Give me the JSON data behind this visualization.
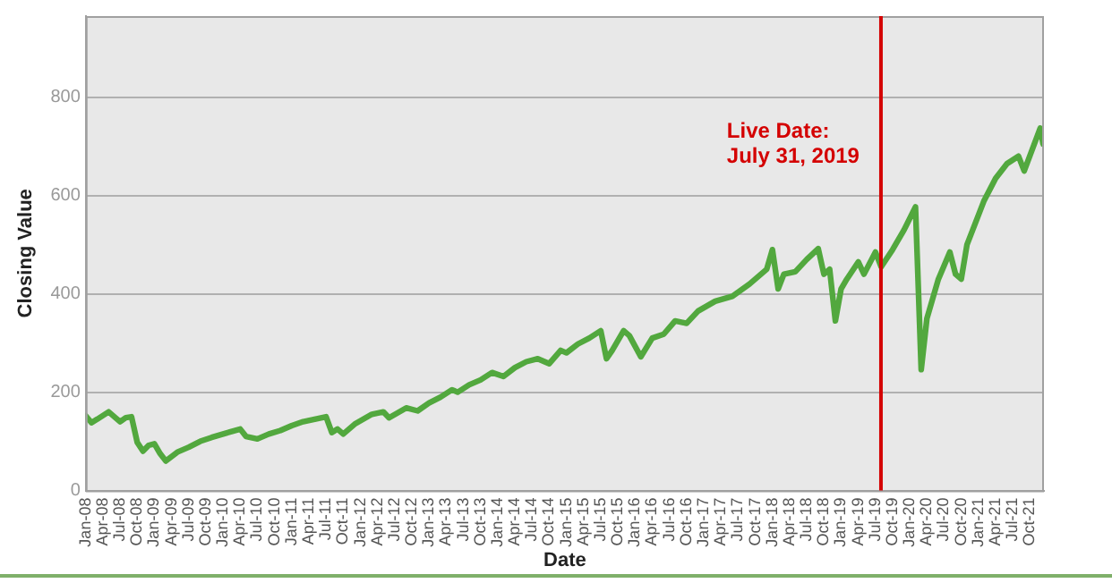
{
  "chart_data": {
    "type": "line",
    "xlabel": "Date",
    "ylabel": "Closing Value",
    "xlim": [
      "2008-01-01",
      "2021-12-15"
    ],
    "ylim": [
      0,
      965
    ],
    "yticks": [
      0,
      200,
      400,
      600,
      800
    ],
    "xticks": [
      {
        "value": "2008-01",
        "label": "Jan-08"
      },
      {
        "value": "2008-04",
        "label": "Apr-08"
      },
      {
        "value": "2008-07",
        "label": "Jul-08"
      },
      {
        "value": "2008-10",
        "label": "Oct-08"
      },
      {
        "value": "2009-01",
        "label": "Jan-09"
      },
      {
        "value": "2009-04",
        "label": "Apr-09"
      },
      {
        "value": "2009-07",
        "label": "Jul-09"
      },
      {
        "value": "2009-10",
        "label": "Oct-09"
      },
      {
        "value": "2010-01",
        "label": "Jan-10"
      },
      {
        "value": "2010-04",
        "label": "Apr-10"
      },
      {
        "value": "2010-07",
        "label": "Jul-10"
      },
      {
        "value": "2010-10",
        "label": "Oct-10"
      },
      {
        "value": "2011-01",
        "label": "Jan-11"
      },
      {
        "value": "2011-04",
        "label": "Apr-11"
      },
      {
        "value": "2011-07",
        "label": "Jul-11"
      },
      {
        "value": "2011-10",
        "label": "Oct-11"
      },
      {
        "value": "2012-01",
        "label": "Jan-12"
      },
      {
        "value": "2012-04",
        "label": "Apr-12"
      },
      {
        "value": "2012-07",
        "label": "Jul-12"
      },
      {
        "value": "2012-10",
        "label": "Oct-12"
      },
      {
        "value": "2013-01",
        "label": "Jan-13"
      },
      {
        "value": "2013-04",
        "label": "Apr-13"
      },
      {
        "value": "2013-07",
        "label": "Jul-13"
      },
      {
        "value": "2013-10",
        "label": "Oct-13"
      },
      {
        "value": "2014-01",
        "label": "Jan-14"
      },
      {
        "value": "2014-04",
        "label": "Apr-14"
      },
      {
        "value": "2014-07",
        "label": "Jul-14"
      },
      {
        "value": "2014-10",
        "label": "Oct-14"
      },
      {
        "value": "2015-01",
        "label": "Jan-15"
      },
      {
        "value": "2015-04",
        "label": "Apr-15"
      },
      {
        "value": "2015-07",
        "label": "Jul-15"
      },
      {
        "value": "2015-10",
        "label": "Oct-15"
      },
      {
        "value": "2016-01",
        "label": "Jan-16"
      },
      {
        "value": "2016-04",
        "label": "Apr-16"
      },
      {
        "value": "2016-07",
        "label": "Jul-16"
      },
      {
        "value": "2016-10",
        "label": "Oct-16"
      },
      {
        "value": "2017-01",
        "label": "Jan-17"
      },
      {
        "value": "2017-04",
        "label": "Apr-17"
      },
      {
        "value": "2017-07",
        "label": "Jul-17"
      },
      {
        "value": "2017-10",
        "label": "Oct-17"
      },
      {
        "value": "2018-01",
        "label": "Jan-18"
      },
      {
        "value": "2018-04",
        "label": "Apr-18"
      },
      {
        "value": "2018-07",
        "label": "Jul-18"
      },
      {
        "value": "2018-10",
        "label": "Oct-18"
      },
      {
        "value": "2019-01",
        "label": "Jan-19"
      },
      {
        "value": "2019-04",
        "label": "Apr-19"
      },
      {
        "value": "2019-07",
        "label": "Jul-19"
      },
      {
        "value": "2019-10",
        "label": "Oct-19"
      },
      {
        "value": "2020-01",
        "label": "Jan-20"
      },
      {
        "value": "2020-04",
        "label": "Apr-20"
      },
      {
        "value": "2020-07",
        "label": "Jul-20"
      },
      {
        "value": "2020-10",
        "label": "Oct-20"
      },
      {
        "value": "2021-01",
        "label": "Jan-21"
      },
      {
        "value": "2021-04",
        "label": "Apr-21"
      },
      {
        "value": "2021-07",
        "label": "Jul-21"
      },
      {
        "value": "2021-10",
        "label": "Oct-21"
      }
    ],
    "grid": "y",
    "legend": false,
    "marker": "none",
    "line_style": "solid",
    "ref_lines": [
      {
        "axis": "x",
        "value": "2019-07-31",
        "label": "Live Date:\nJuly 31, 2019",
        "color": "#d40000"
      }
    ],
    "series": [
      {
        "color": "#52a83e",
        "x": [
          "2008-01",
          "2008-02",
          "2008-03",
          "2008-05",
          "2008-07",
          "2008-08",
          "2008-09",
          "2008-10",
          "2008-11",
          "2008-12",
          "2009-01",
          "2009-02",
          "2009-03",
          "2009-05",
          "2009-07",
          "2009-09",
          "2009-11",
          "2010-01",
          "2010-04",
          "2010-05",
          "2010-07",
          "2010-09",
          "2010-11",
          "2011-01",
          "2011-03",
          "2011-05",
          "2011-07",
          "2011-08",
          "2011-09",
          "2011-10",
          "2011-12",
          "2012-03",
          "2012-05",
          "2012-06",
          "2012-09",
          "2012-11",
          "2013-01",
          "2013-03",
          "2013-05",
          "2013-06",
          "2013-08",
          "2013-10",
          "2013-12",
          "2014-02",
          "2014-04",
          "2014-06",
          "2014-08",
          "2014-10",
          "2014-12",
          "2015-01",
          "2015-03",
          "2015-05",
          "2015-07",
          "2015-08",
          "2015-09",
          "2015-11",
          "2015-12",
          "2016-02",
          "2016-04",
          "2016-06",
          "2016-08",
          "2016-10",
          "2016-12",
          "2017-03",
          "2017-06",
          "2017-09",
          "2017-12",
          "2018-01",
          "2018-02",
          "2018-03",
          "2018-05",
          "2018-07",
          "2018-09",
          "2018-10",
          "2018-11",
          "2018-12",
          "2019-01",
          "2019-02",
          "2019-04",
          "2019-05",
          "2019-07",
          "2019-08",
          "2019-10",
          "2019-12",
          "2020-02",
          "2020-03",
          "2020-04",
          "2020-06",
          "2020-08",
          "2020-09",
          "2020-10",
          "2020-11",
          "2020-12",
          "2021-02",
          "2021-04",
          "2021-06",
          "2021-08",
          "2021-09",
          "2021-11-25",
          "2021-12-10"
        ],
        "values": [
          152,
          138,
          145,
          160,
          140,
          148,
          150,
          98,
          80,
          92,
          95,
          75,
          60,
          78,
          88,
          100,
          108,
          115,
          125,
          110,
          105,
          115,
          122,
          132,
          140,
          145,
          150,
          118,
          125,
          115,
          135,
          155,
          160,
          148,
          168,
          162,
          178,
          190,
          205,
          200,
          215,
          225,
          240,
          232,
          250,
          262,
          268,
          258,
          285,
          280,
          298,
          310,
          325,
          268,
          285,
          325,
          315,
          272,
          310,
          318,
          345,
          340,
          365,
          385,
          395,
          420,
          450,
          490,
          410,
          440,
          445,
          470,
          492,
          440,
          450,
          345,
          410,
          430,
          465,
          440,
          485,
          455,
          490,
          530,
          577,
          246,
          350,
          430,
          485,
          440,
          430,
          500,
          530,
          590,
          635,
          665,
          680,
          650,
          737,
          705
        ]
      }
    ]
  }
}
